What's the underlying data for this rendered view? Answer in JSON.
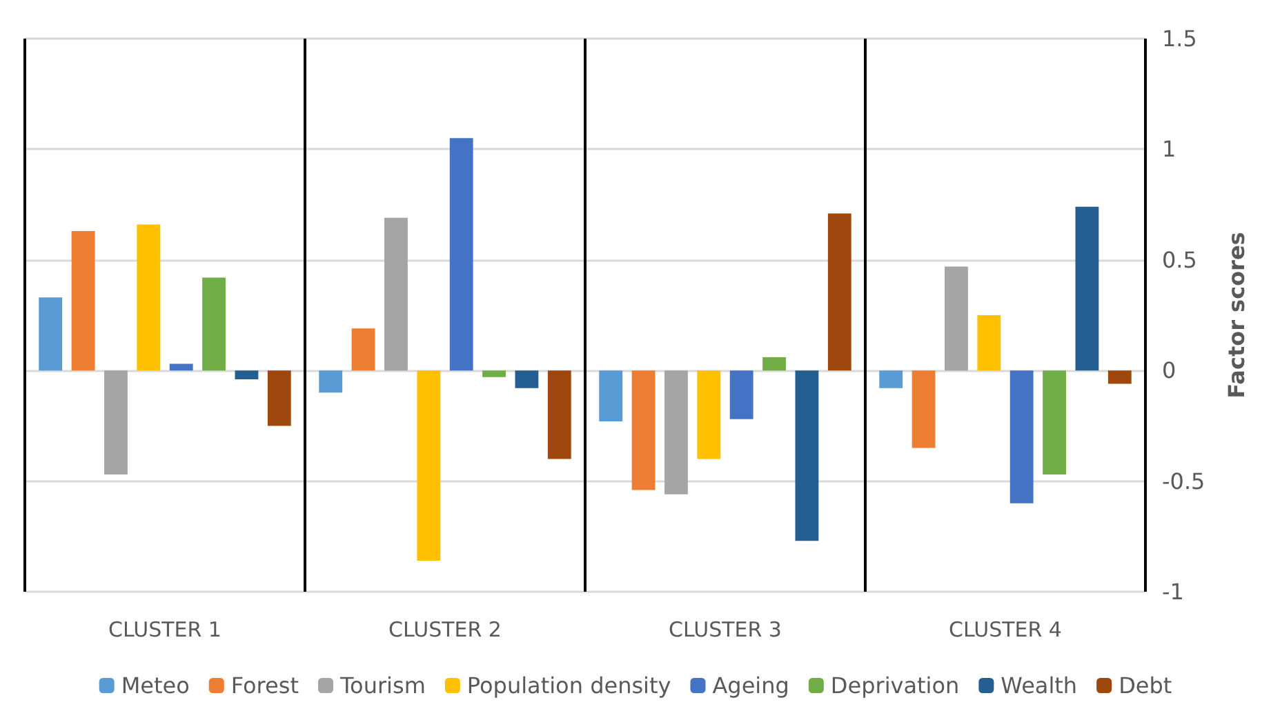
{
  "chart_data": {
    "type": "bar",
    "ylabel": "Factor scores",
    "categories": [
      "CLUSTER 1",
      "CLUSTER 2",
      "CLUSTER 3",
      "CLUSTER 4"
    ],
    "series": [
      {
        "name": "Meteo",
        "color": "#5b9bd5",
        "values": [
          0.33,
          -0.1,
          -0.23,
          -0.08
        ]
      },
      {
        "name": "Forest",
        "color": "#ed7d31",
        "values": [
          0.63,
          0.19,
          -0.54,
          -0.35
        ]
      },
      {
        "name": "Tourism",
        "color": "#a5a5a5",
        "values": [
          -0.47,
          0.69,
          -0.56,
          0.47
        ]
      },
      {
        "name": "Population density",
        "color": "#ffc000",
        "values": [
          0.66,
          -0.86,
          -0.4,
          0.25
        ]
      },
      {
        "name": "Ageing",
        "color": "#4472c4",
        "values": [
          0.03,
          1.05,
          -0.22,
          -0.6
        ]
      },
      {
        "name": "Deprivation",
        "color": "#70ad47",
        "values": [
          0.42,
          -0.03,
          0.06,
          -0.47
        ]
      },
      {
        "name": "Wealth",
        "color": "#255e91",
        "values": [
          -0.04,
          -0.08,
          -0.77,
          0.74
        ]
      },
      {
        "name": "Debt",
        "color": "#9e480e",
        "values": [
          -0.25,
          -0.4,
          0.71,
          -0.06
        ]
      }
    ],
    "ylim": [
      -1,
      1.5
    ],
    "yticks": [
      -1,
      -0.5,
      0,
      0.5,
      1,
      1.5
    ],
    "grid": "y",
    "legend": "bottom"
  }
}
